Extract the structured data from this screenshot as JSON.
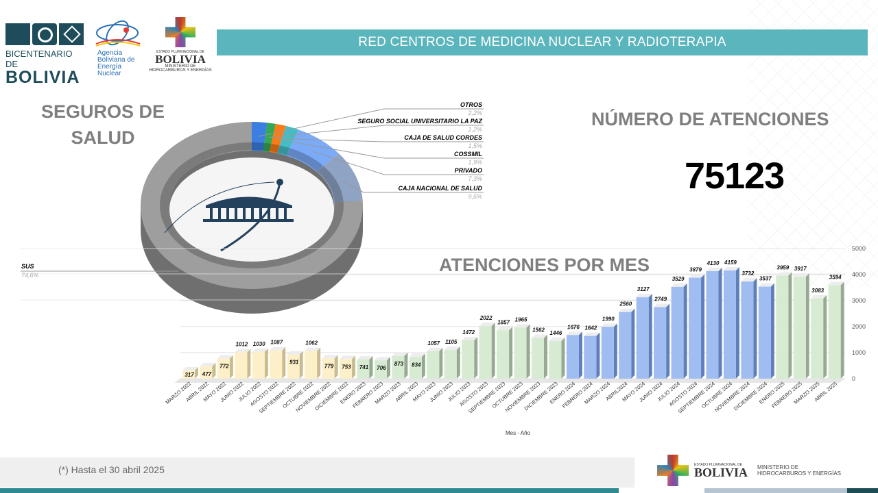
{
  "header": {
    "title": "RED CENTROS DE MEDICINA NUCLEAR Y RADIOTERAPIA"
  },
  "logos": {
    "bicentenario": {
      "line1": "BICENTENARIO DE",
      "line2": "BOLIVIA"
    },
    "aben": {
      "l1": "Agencia",
      "l2": "Boliviana de",
      "l3": "Energía",
      "l4": "Nuclear"
    },
    "ministerio": {
      "small": "ESTADO PLURINACIONAL DE",
      "name": "BOLIVIA",
      "l1": "MINISTERIO DE",
      "l2": "HIDROCARBUROS Y ENERGÍAS"
    }
  },
  "seguros_title_1": "SEGUROS DE",
  "seguros_title_2": "SALUD",
  "numero_title": "NÚMERO DE ATENCIONES",
  "numero_value": "75123",
  "footer": {
    "note": "(*) Hasta el 30 abril 2025",
    "min_small": "ESTADO PLURINACIONAL DE",
    "min_name": "BOLIVIA",
    "min_l1": "MINISTERIO DE",
    "min_l2": "HIDROCARBUROS Y ENERGÍAS"
  },
  "chart_data": [
    {
      "type": "pie",
      "title": "SEGUROS DE SALUD",
      "slices": [
        {
          "name": "OTROS",
          "value": 2.2,
          "label": "2,2%",
          "color": "#3b7fe0"
        },
        {
          "name": "SEGURO SOCIAL UNIVERSITARIO LA PAZ",
          "value": 1.2,
          "label": "1,2%",
          "color": "#34a853"
        },
        {
          "name": "CAJA DE SALUD CORDES",
          "value": 1.5,
          "label": "1,5%",
          "color": "#fa7b17"
        },
        {
          "name": "COSSMIL",
          "value": 1.9,
          "label": "1,9%",
          "color": "#46bdc6"
        },
        {
          "name": "PRIVADO",
          "value": 7.3,
          "label": "7,3%",
          "color": "#7baaf7"
        },
        {
          "name": "CAJA NACIONAL DE SALUD",
          "value": 9.6,
          "label": "9,6%",
          "color": "#8fa3c4"
        },
        {
          "name": "SUS",
          "value": 74.6,
          "label": "74,6%",
          "color": "#9e9e9e"
        }
      ]
    },
    {
      "type": "bar",
      "title": "ATENCIONES POR MES",
      "xlabel": "Mes - Año",
      "ylabel": "",
      "ylim": [
        0,
        5000
      ],
      "yticks": [
        0,
        1000,
        2000,
        3000,
        4000,
        5000
      ],
      "grid": true,
      "categories": [
        "MARZO 2022",
        "ABRIL 2022",
        "MAYO 2022",
        "JUNIO 2022",
        "JULIO 2022",
        "AGOSTO 2022",
        "SEPTIEMBRE 2022",
        "OCTUBRE 2022",
        "NOVIEMBRE 2022",
        "DICIEMBRE 2022",
        "ENERO 2023",
        "FEBRERO 2023",
        "MARZO 2023",
        "ABRIL 2023",
        "MAYO 2023",
        "JUNIO 2023",
        "JULIO 2023",
        "AGOSTO 2023",
        "SEPTIEMBRE 2023",
        "OCTUBRE 2023",
        "NOVIEMBRE 2023",
        "DICIEMBRE 2023",
        "ENERO 2024",
        "FEBRERO 2024",
        "MARZO 2024",
        "ABRIL2024",
        "MAYO 2024",
        "JUNIO 2024",
        "JULIO 2024",
        "AGOSTO 2024",
        "SEPTIEMBRE 2024",
        "OCTUBRE 2024",
        "NOVIEMBRE 2024",
        "DICIEMBRE 2024",
        "ENERO 2025",
        "FEBRERO 2025",
        "MARZO 2025",
        "ABRIL 2025"
      ],
      "values": [
        317,
        477,
        772,
        1012,
        1030,
        1087,
        931,
        1062,
        779,
        753,
        741,
        706,
        873,
        834,
        1057,
        1105,
        1472,
        2022,
        1857,
        1965,
        1562,
        1446,
        1676,
        1642,
        1990,
        2560,
        3127,
        2749,
        3529,
        3879,
        4130,
        4159,
        3732,
        3537,
        3959,
        3917,
        3083,
        3594
      ],
      "groups": [
        "y",
        "y",
        "y",
        "y",
        "y",
        "y",
        "y",
        "y",
        "y",
        "y",
        "g",
        "g",
        "g",
        "g",
        "g",
        "g",
        "g",
        "g",
        "g",
        "g",
        "g",
        "g",
        "b",
        "b",
        "b",
        "b",
        "b",
        "b",
        "b",
        "b",
        "b",
        "b",
        "b",
        "b",
        "g",
        "g",
        "g",
        "g"
      ],
      "colors": {
        "y": [
          "#fdf0c8",
          "#c9bb90"
        ],
        "g": [
          "#d6ebd1",
          "#98a993"
        ],
        "b": [
          "#9fbdf0",
          "#5f7fb8"
        ]
      }
    }
  ]
}
